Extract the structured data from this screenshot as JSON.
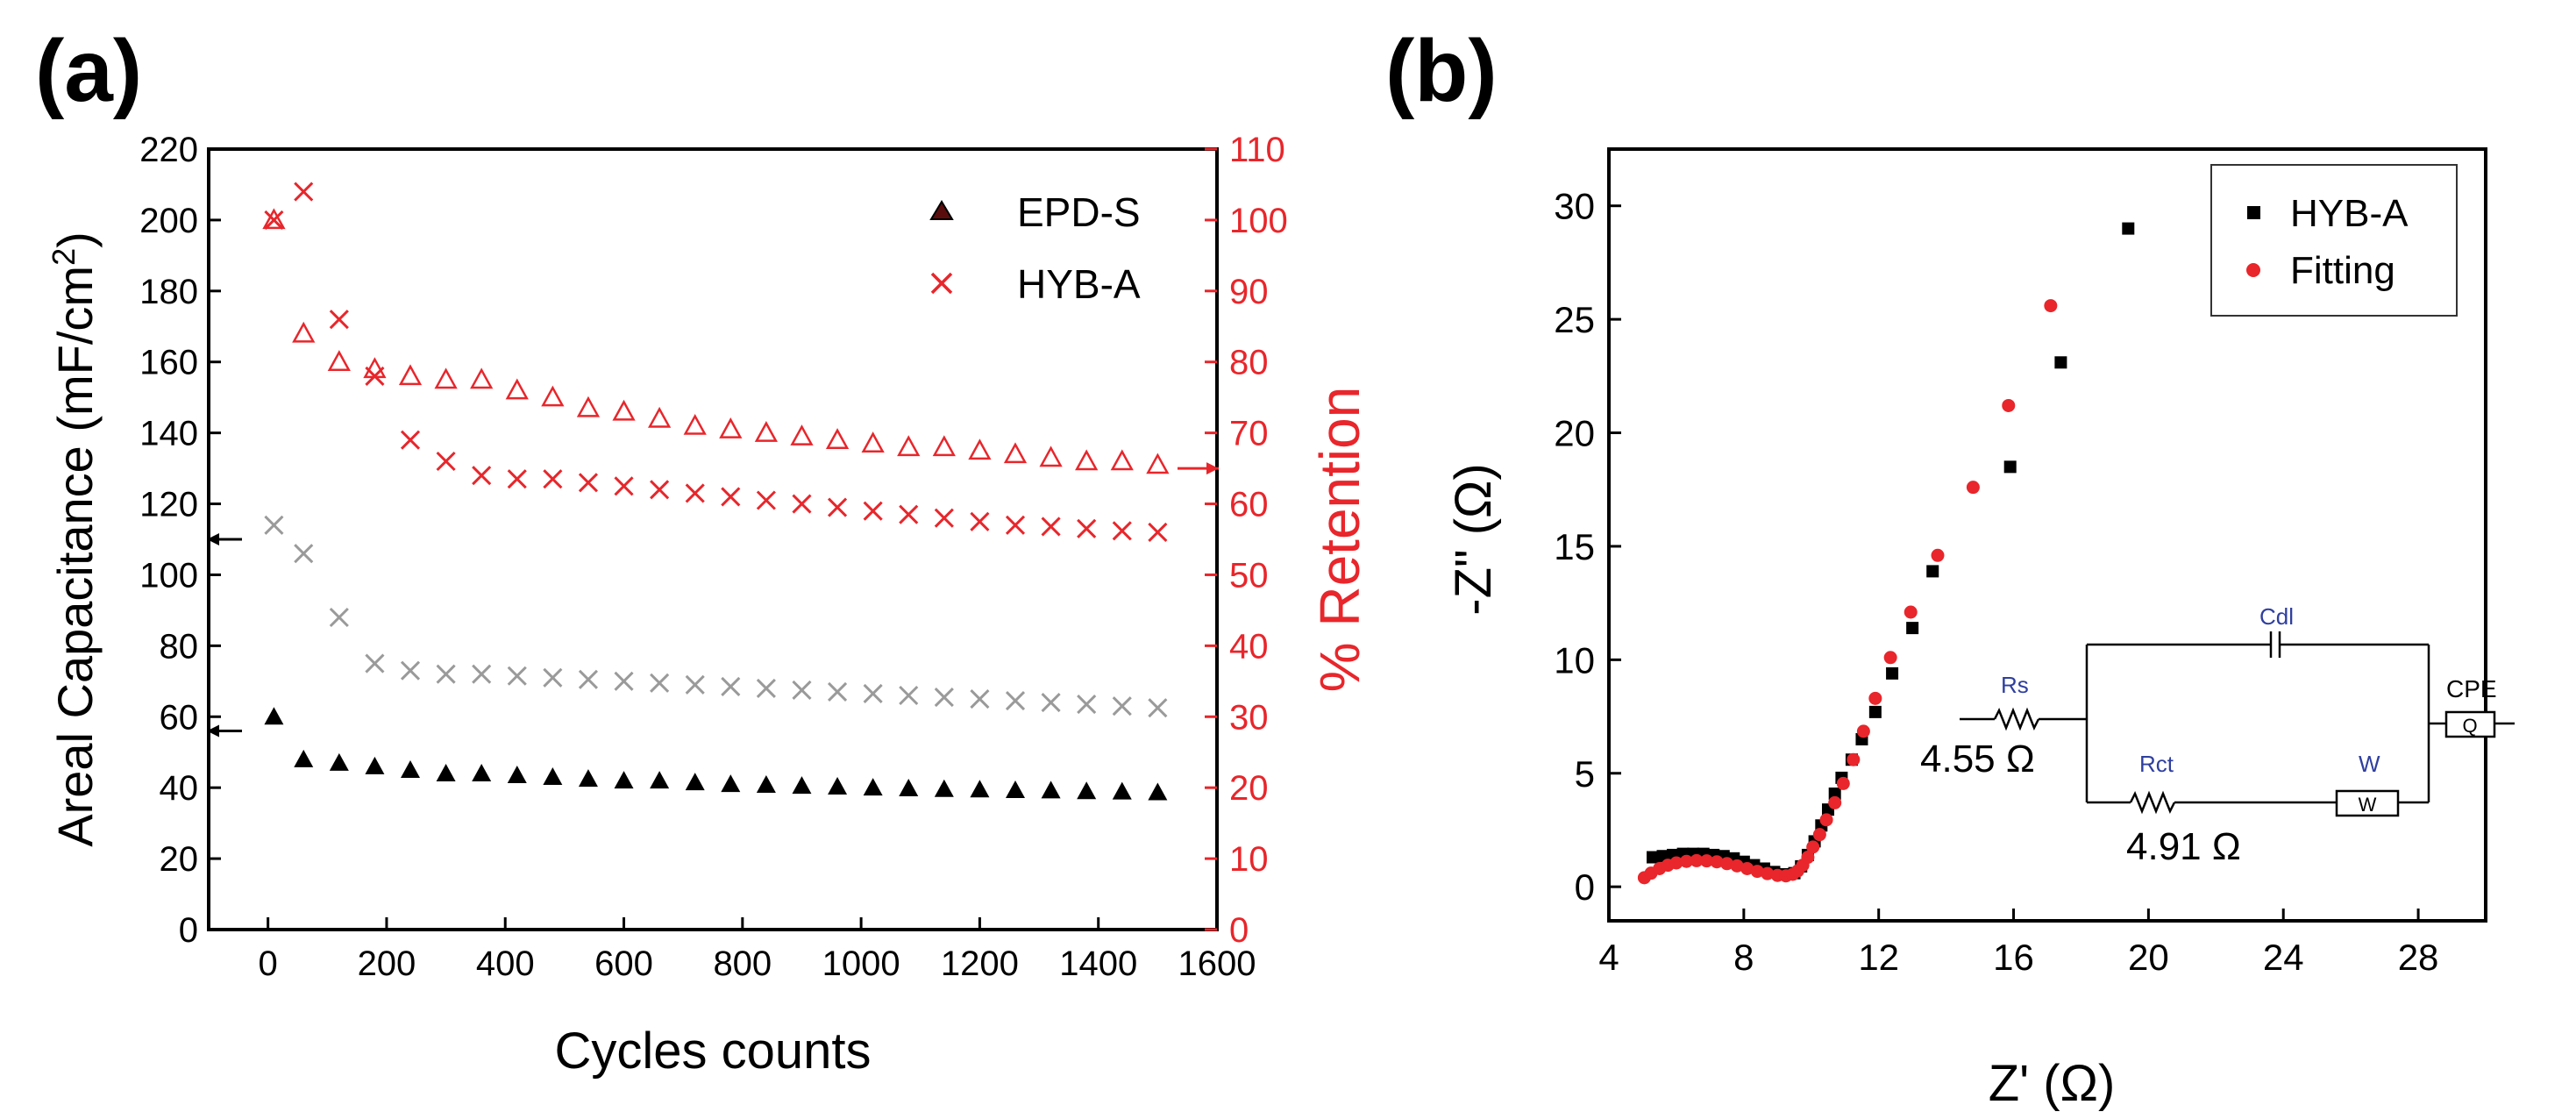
{
  "panel_labels": {
    "a": "(a)",
    "b": "(b)"
  },
  "chart_data": [
    {
      "id": "a",
      "type": "scatter",
      "xlabel": "Cycles counts",
      "ylabel": "Areal Capacitance (mF/cm",
      "ylabel_sup": "2",
      "ylabel_end": ")",
      "y2label": "% Retention",
      "xlim": [
        -100,
        1600
      ],
      "ylim": [
        0,
        220
      ],
      "y2lim": [
        0,
        110
      ],
      "xticks": [
        0,
        200,
        400,
        600,
        800,
        1000,
        1200,
        1400,
        1600
      ],
      "yticks": [
        0,
        20,
        40,
        60,
        80,
        100,
        120,
        140,
        160,
        180,
        200,
        220
      ],
      "y2ticks": [
        0,
        10,
        20,
        30,
        40,
        50,
        60,
        70,
        80,
        90,
        100,
        110
      ],
      "legend": [
        "EPD-S",
        "HYB-A"
      ],
      "legend_position": "top-right",
      "axis_arrows": [
        {
          "series": "HYB-A capacitance",
          "axis": "left",
          "y": 110
        },
        {
          "series": "EPD-S capacitance",
          "axis": "left",
          "y": 56
        },
        {
          "series": "retention",
          "axis": "right",
          "y": 65
        }
      ],
      "series": [
        {
          "name": "EPD-S capacitance",
          "axis": "left",
          "marker": "filled-triangle",
          "color": "#000000",
          "x": [
            10,
            60,
            120,
            180,
            240,
            300,
            360,
            420,
            480,
            540,
            600,
            660,
            720,
            780,
            840,
            900,
            960,
            1020,
            1080,
            1140,
            1200,
            1260,
            1320,
            1380,
            1440,
            1500
          ],
          "values": [
            60,
            48,
            47,
            46,
            45,
            44,
            44,
            43.5,
            43,
            42.5,
            42,
            42,
            41.5,
            41,
            40.8,
            40.5,
            40.3,
            40,
            39.8,
            39.6,
            39.5,
            39.3,
            39.2,
            39,
            38.9,
            38.7
          ]
        },
        {
          "name": "EPD-S retention",
          "axis": "right",
          "marker": "open-triangle",
          "color": "#e8262b",
          "x": [
            10,
            60,
            120,
            180,
            240,
            300,
            360,
            420,
            480,
            540,
            600,
            660,
            720,
            780,
            840,
            900,
            960,
            1020,
            1080,
            1140,
            1200,
            1260,
            1320,
            1380,
            1440,
            1500
          ],
          "values": [
            100,
            84,
            80,
            79,
            78,
            77.5,
            77.5,
            76,
            75,
            73.5,
            73,
            72,
            71,
            70.5,
            70,
            69.5,
            69,
            68.5,
            68,
            68,
            67.5,
            67,
            66.5,
            66,
            66,
            65.5
          ]
        },
        {
          "name": "HYB-A capacitance",
          "axis": "left",
          "marker": "x",
          "color": "#9a9a9a",
          "x": [
            10,
            60,
            120,
            180,
            240,
            300,
            360,
            420,
            480,
            540,
            600,
            660,
            720,
            780,
            840,
            900,
            960,
            1020,
            1080,
            1140,
            1200,
            1260,
            1320,
            1380,
            1440,
            1500
          ],
          "values": [
            114,
            106,
            88,
            75,
            73,
            72,
            72,
            71.5,
            71,
            70.5,
            70,
            69.5,
            69,
            68.5,
            68,
            67.5,
            67,
            66.5,
            66,
            65.5,
            65,
            64.5,
            64,
            63.5,
            63,
            62.5
          ]
        },
        {
          "name": "HYB-A retention",
          "axis": "right",
          "marker": "x",
          "color": "#e8262b",
          "x": [
            10,
            60,
            120,
            180,
            240,
            300,
            360,
            420,
            480,
            540,
            600,
            660,
            720,
            780,
            840,
            900,
            960,
            1020,
            1080,
            1140,
            1200,
            1260,
            1320,
            1380,
            1440,
            1500
          ],
          "values": [
            100,
            104,
            86,
            78,
            69,
            66,
            64,
            63.5,
            63.5,
            63,
            62.5,
            62,
            61.5,
            61,
            60.5,
            60,
            59.5,
            59,
            58.5,
            58,
            57.5,
            57,
            56.8,
            56.5,
            56.2,
            56
          ]
        }
      ]
    },
    {
      "id": "b",
      "type": "scatter",
      "xlabel": "Z' (Ω)",
      "ylabel": "-Z\" (Ω)",
      "xlim": [
        4,
        30
      ],
      "ylim": [
        -1.5,
        32.5
      ],
      "xticks": [
        4,
        8,
        12,
        16,
        20,
        24,
        28
      ],
      "yticks": [
        0,
        5,
        10,
        15,
        20,
        25,
        30
      ],
      "legend": [
        "HYB-A",
        "Fitting"
      ],
      "legend_position": "top-right",
      "series": [
        {
          "name": "HYB-A",
          "marker": "square",
          "color": "#000000",
          "x": [
            5.3,
            5.6,
            5.9,
            6.2,
            6.5,
            6.8,
            7.1,
            7.4,
            7.7,
            8.0,
            8.3,
            8.6,
            8.9,
            9.2,
            9.5,
            9.7,
            9.9,
            10.1,
            10.3,
            10.5,
            10.7,
            10.9,
            11.2,
            11.5,
            11.9,
            12.4,
            13.0,
            13.6,
            15.9,
            17.4,
            19.4
          ],
          "values": [
            1.3,
            1.35,
            1.4,
            1.45,
            1.45,
            1.45,
            1.4,
            1.35,
            1.25,
            1.1,
            0.95,
            0.8,
            0.65,
            0.55,
            0.6,
            0.9,
            1.4,
            2.0,
            2.7,
            3.4,
            4.1,
            4.8,
            5.6,
            6.5,
            7.7,
            9.4,
            11.4,
            13.9,
            18.5,
            23.1,
            29.0
          ]
        },
        {
          "name": "Fitting",
          "marker": "circle",
          "color": "#e8262b",
          "x": [
            5.05,
            5.25,
            5.5,
            5.75,
            6.0,
            6.3,
            6.6,
            6.9,
            7.2,
            7.5,
            7.8,
            8.1,
            8.4,
            8.7,
            9.0,
            9.25,
            9.45,
            9.6,
            9.75,
            9.9,
            10.05,
            10.25,
            10.45,
            10.7,
            10.95,
            11.25,
            11.55,
            11.9,
            12.35,
            12.95,
            13.75,
            14.8,
            15.85,
            17.1
          ],
          "values": [
            0.4,
            0.6,
            0.8,
            0.95,
            1.05,
            1.12,
            1.15,
            1.14,
            1.1,
            1.02,
            0.92,
            0.8,
            0.68,
            0.58,
            0.5,
            0.48,
            0.55,
            0.7,
            0.95,
            1.3,
            1.75,
            2.3,
            2.95,
            3.7,
            4.55,
            5.6,
            6.85,
            8.3,
            10.1,
            12.1,
            14.6,
            17.6,
            21.2,
            25.6
          ]
        }
      ],
      "inset_circuit": {
        "Rs_label": "Rs",
        "Rs_value": "4.55 Ω",
        "Cdl_label": "Cdl",
        "Rct_label": "Rct",
        "Rct_value": "4.91 Ω",
        "W_label": "W",
        "W_box": "W",
        "CPE_label": "CPE",
        "CPE_box": "Q"
      }
    }
  ]
}
